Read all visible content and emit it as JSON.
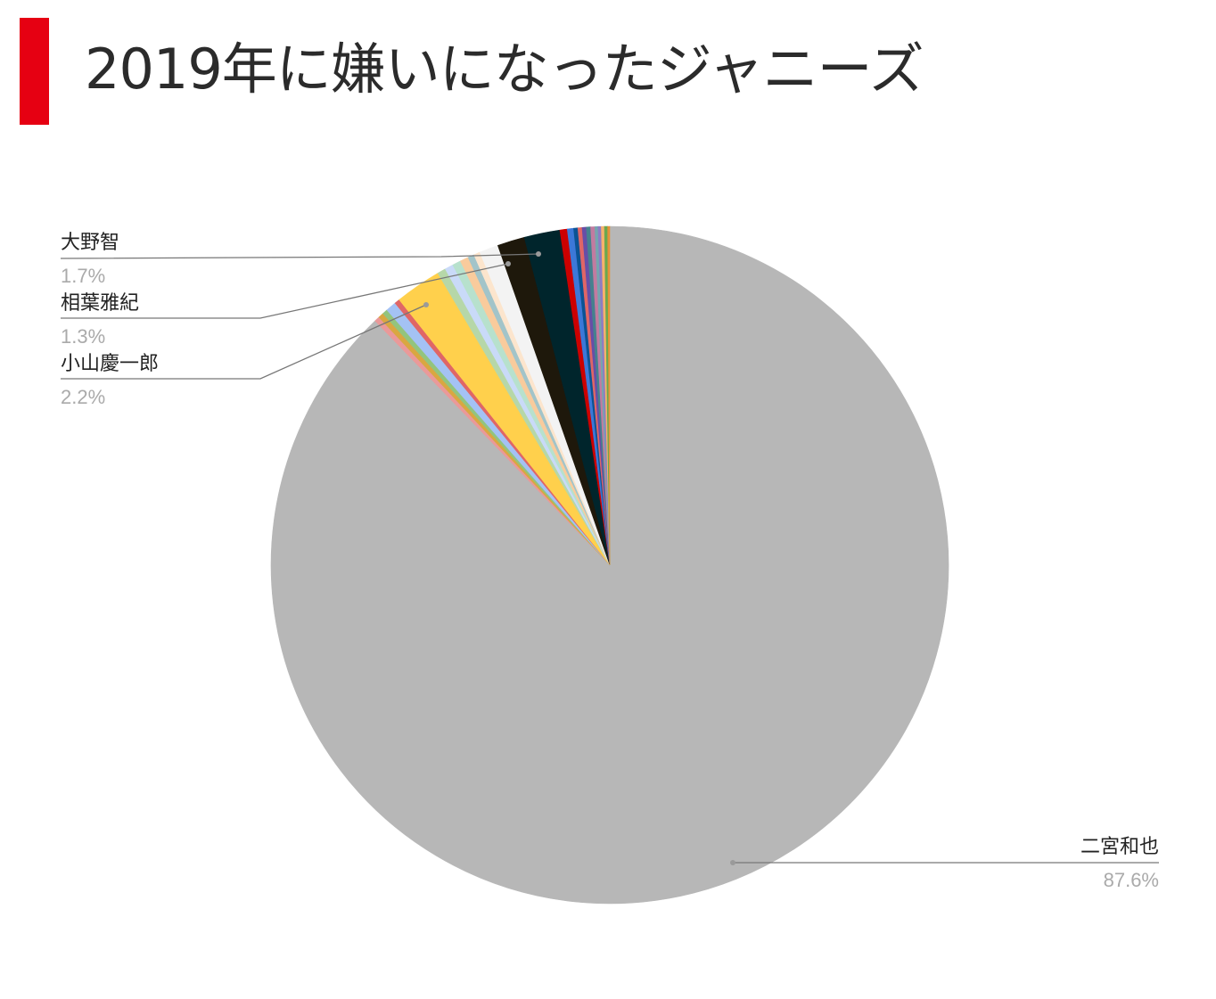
{
  "colors": {
    "accent": "#e60012",
    "title_text": "#2b2b2b",
    "leader_line": "#777777"
  },
  "chart_data": {
    "type": "pie",
    "title": "2019年に嫌いになったジャニーズ",
    "labeled_slices": [
      {
        "name": "二宮和也",
        "value": 87.6,
        "label": "87.6%",
        "color": "#b7b7b7"
      },
      {
        "name": "小山慶一郎",
        "value": 2.2,
        "label": "2.2%",
        "color": "#ffd04c"
      },
      {
        "name": "相葉雅紀",
        "value": 1.3,
        "label": "1.3%",
        "color": "#1e180b"
      },
      {
        "name": "大野智",
        "value": 1.7,
        "label": "1.7%",
        "color": "#00252c"
      }
    ],
    "unlabeled_slices": [
      {
        "value": 0.25,
        "color": "#ea9999"
      },
      {
        "value": 0.25,
        "color": "#d9a741"
      },
      {
        "value": 0.25,
        "color": "#93c47d"
      },
      {
        "value": 0.5,
        "color": "#a4c2f4"
      },
      {
        "value": 0.25,
        "color": "#e06666"
      },
      {
        "value": 0.4,
        "color": "#b6d7a8"
      },
      {
        "value": 0.4,
        "color": "#c9daf8"
      },
      {
        "value": 0.4,
        "color": "#b7e1cd"
      },
      {
        "value": 0.4,
        "color": "#f9cb9c"
      },
      {
        "value": 0.3,
        "color": "#a2c4c9"
      },
      {
        "value": 0.3,
        "color": "#fce5cd"
      },
      {
        "value": 0.9,
        "color": "#f3f3f3"
      },
      {
        "value": 0.35,
        "color": "#cc0000"
      },
      {
        "value": 0.3,
        "color": "#3c78d8"
      },
      {
        "value": 0.2,
        "color": "#0b5394"
      },
      {
        "value": 0.2,
        "color": "#e06666"
      },
      {
        "value": 0.2,
        "color": "#674ea7"
      },
      {
        "value": 0.2,
        "color": "#45818e"
      },
      {
        "value": 0.2,
        "color": "#c27ba0"
      },
      {
        "value": 0.15,
        "color": "#76a5af"
      },
      {
        "value": 0.15,
        "color": "#8e7cc3"
      },
      {
        "value": 0.15,
        "color": "#f6b26b"
      },
      {
        "value": 0.15,
        "color": "#6aa84f"
      },
      {
        "value": 0.1,
        "color": "#e69138"
      }
    ]
  }
}
